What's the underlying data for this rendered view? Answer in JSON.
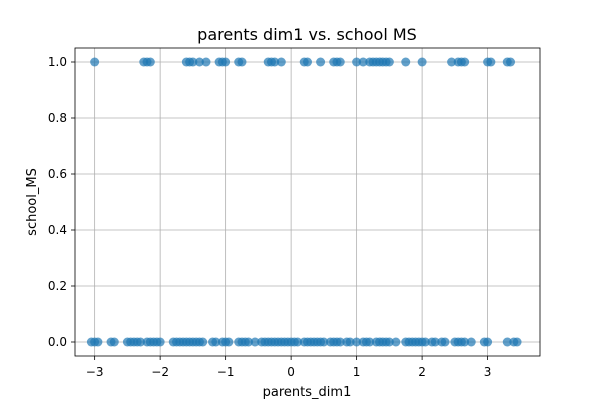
{
  "chart_data": {
    "type": "scatter",
    "title": "parents dim1 vs. school MS",
    "xlabel": "parents_dim1",
    "ylabel": "school_MS",
    "xlim": [
      -3.3,
      3.8
    ],
    "ylim": [
      -0.05,
      1.05
    ],
    "xticks": [
      -3,
      -2,
      -1,
      0,
      1,
      2,
      3
    ],
    "xtick_labels": [
      "−3",
      "−2",
      "−1",
      "0",
      "1",
      "2",
      "3"
    ],
    "yticks": [
      0.0,
      0.2,
      0.4,
      0.6,
      0.8,
      1.0
    ],
    "ytick_labels": [
      "0.0",
      "0.2",
      "0.4",
      "0.6",
      "0.8",
      "1.0"
    ],
    "grid": true,
    "marker_color": "#1f77b4",
    "marker_alpha": 0.7,
    "series": [
      {
        "x": [
          -3.0,
          -2.25,
          -2.2,
          -2.15,
          -1.6,
          -1.55,
          -1.5,
          -1.4,
          -1.3,
          -1.1,
          -1.05,
          -1.0,
          -0.8,
          -0.75,
          -0.35,
          -0.3,
          -0.25,
          -0.15,
          0.2,
          0.25,
          0.45,
          0.65,
          0.7,
          0.75,
          1.0,
          1.1,
          1.2,
          1.25,
          1.3,
          1.35,
          1.4,
          1.45,
          1.5,
          1.75,
          2.0,
          2.45,
          2.55,
          2.6,
          2.65,
          3.0,
          3.05,
          3.3,
          3.35
        ],
        "y": [
          1,
          1,
          1,
          1,
          1,
          1,
          1,
          1,
          1,
          1,
          1,
          1,
          1,
          1,
          1,
          1,
          1,
          1,
          1,
          1,
          1,
          1,
          1,
          1,
          1,
          1,
          1,
          1,
          1,
          1,
          1,
          1,
          1,
          1,
          1,
          1,
          1,
          1,
          1,
          1,
          1,
          1,
          1
        ]
      },
      {
        "x": [
          -3.05,
          -3.0,
          -2.95,
          -2.75,
          -2.7,
          -2.5,
          -2.45,
          -2.4,
          -2.35,
          -2.3,
          -2.2,
          -2.15,
          -2.1,
          -2.05,
          -2.0,
          -1.8,
          -1.75,
          -1.7,
          -1.65,
          -1.6,
          -1.55,
          -1.5,
          -1.45,
          -1.4,
          -1.35,
          -1.2,
          -1.15,
          -1.05,
          -1.0,
          -0.95,
          -0.8,
          -0.75,
          -0.7,
          -0.65,
          -0.55,
          -0.45,
          -0.4,
          -0.35,
          -0.3,
          -0.25,
          -0.2,
          -0.15,
          -0.1,
          -0.05,
          0.0,
          0.05,
          0.1,
          0.2,
          0.25,
          0.3,
          0.35,
          0.4,
          0.45,
          0.5,
          0.6,
          0.65,
          0.7,
          0.75,
          0.85,
          0.9,
          1.0,
          1.1,
          1.15,
          1.2,
          1.3,
          1.35,
          1.4,
          1.45,
          1.5,
          1.6,
          1.75,
          1.8,
          1.85,
          1.9,
          1.95,
          2.0,
          2.05,
          2.15,
          2.2,
          2.3,
          2.35,
          2.5,
          2.55,
          2.6,
          2.65,
          2.75,
          2.95,
          3.0,
          3.3,
          3.4,
          3.45
        ],
        "y": [
          0,
          0,
          0,
          0,
          0,
          0,
          0,
          0,
          0,
          0,
          0,
          0,
          0,
          0,
          0,
          0,
          0,
          0,
          0,
          0,
          0,
          0,
          0,
          0,
          0,
          0,
          0,
          0,
          0,
          0,
          0,
          0,
          0,
          0,
          0,
          0,
          0,
          0,
          0,
          0,
          0,
          0,
          0,
          0,
          0,
          0,
          0,
          0,
          0,
          0,
          0,
          0,
          0,
          0,
          0,
          0,
          0,
          0,
          0,
          0,
          0,
          0,
          0,
          0,
          0,
          0,
          0,
          0,
          0,
          0,
          0,
          0,
          0,
          0,
          0,
          0,
          0,
          0,
          0,
          0,
          0,
          0,
          0,
          0,
          0,
          0,
          0,
          0,
          0,
          0,
          0
        ]
      }
    ]
  }
}
